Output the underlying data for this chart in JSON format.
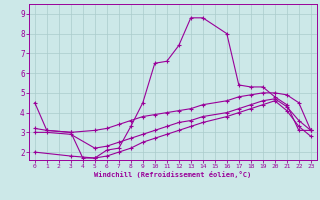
{
  "xlabel": "Windchill (Refroidissement éolien,°C)",
  "bg_color": "#cce8e8",
  "grid_color": "#aacccc",
  "line_color": "#990099",
  "xlim": [
    -0.5,
    23.5
  ],
  "ylim": [
    1.6,
    9.5
  ],
  "xticks": [
    0,
    1,
    2,
    3,
    4,
    5,
    6,
    7,
    8,
    9,
    10,
    11,
    12,
    13,
    14,
    15,
    16,
    17,
    18,
    19,
    20,
    21,
    22,
    23
  ],
  "yticks": [
    2,
    3,
    4,
    5,
    6,
    7,
    8,
    9
  ],
  "line1_x": [
    0,
    1,
    3,
    4,
    5,
    6,
    7,
    8,
    9,
    10,
    11,
    12,
    13,
    14,
    16,
    17,
    18,
    19,
    20,
    21,
    22,
    23
  ],
  "line1_y": [
    4.5,
    3.1,
    3.0,
    1.7,
    1.7,
    2.1,
    2.2,
    3.3,
    4.5,
    6.5,
    6.6,
    7.4,
    8.8,
    8.8,
    8.0,
    5.4,
    5.3,
    5.3,
    4.8,
    4.4,
    3.1,
    3.1
  ],
  "line2_x": [
    0,
    1,
    3,
    5,
    6,
    7,
    8,
    9,
    10,
    11,
    12,
    13,
    14,
    16,
    17,
    18,
    19,
    20,
    21,
    22,
    23
  ],
  "line2_y": [
    3.2,
    3.1,
    3.0,
    3.1,
    3.2,
    3.4,
    3.6,
    3.8,
    3.9,
    4.0,
    4.1,
    4.2,
    4.4,
    4.6,
    4.8,
    4.9,
    5.0,
    5.0,
    4.9,
    4.5,
    3.1
  ],
  "line3_x": [
    0,
    1,
    3,
    5,
    6,
    7,
    8,
    9,
    10,
    11,
    12,
    13,
    14,
    16,
    17,
    18,
    19,
    20,
    21,
    22,
    23
  ],
  "line3_y": [
    3.0,
    3.0,
    2.9,
    2.2,
    2.3,
    2.5,
    2.7,
    2.9,
    3.1,
    3.3,
    3.5,
    3.6,
    3.8,
    4.0,
    4.2,
    4.4,
    4.6,
    4.7,
    4.3,
    3.6,
    3.1
  ],
  "line4_x": [
    0,
    3,
    5,
    6,
    7,
    8,
    9,
    10,
    11,
    12,
    13,
    14,
    16,
    17,
    18,
    19,
    20,
    21,
    22,
    23
  ],
  "line4_y": [
    2.0,
    1.8,
    1.7,
    1.8,
    2.0,
    2.2,
    2.5,
    2.7,
    2.9,
    3.1,
    3.3,
    3.5,
    3.8,
    4.0,
    4.2,
    4.4,
    4.6,
    4.1,
    3.3,
    2.8
  ]
}
